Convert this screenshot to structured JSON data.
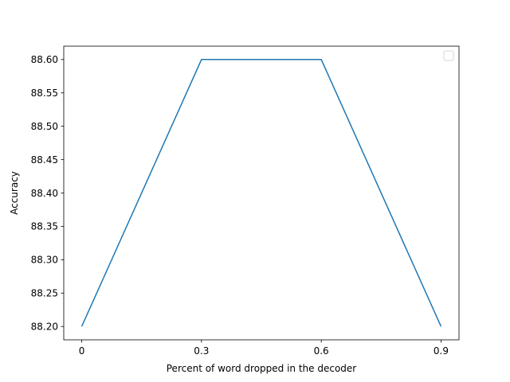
{
  "chart_data": {
    "type": "line",
    "title": "",
    "xlabel": "Percent of word dropped in the decoder",
    "ylabel": "Accuracy",
    "x": [
      0,
      0.3,
      0.6,
      0.9
    ],
    "x_tick_labels": [
      "0",
      "0.3",
      "0.6",
      "0.9"
    ],
    "series": [
      {
        "values": [
          88.2,
          88.6,
          88.6,
          88.2
        ]
      }
    ],
    "y_ticks": [
      "88.20",
      "88.25",
      "88.30",
      "88.35",
      "88.40",
      "88.45",
      "88.50",
      "88.55",
      "88.60"
    ],
    "xlim": [
      -0.045,
      0.945
    ],
    "ylim": [
      88.18,
      88.62
    ],
    "grid": false,
    "legend": "top-right",
    "colors": {
      "line": "#1f77b4",
      "axes": "#000000",
      "legend_border": "#cccccc"
    }
  }
}
